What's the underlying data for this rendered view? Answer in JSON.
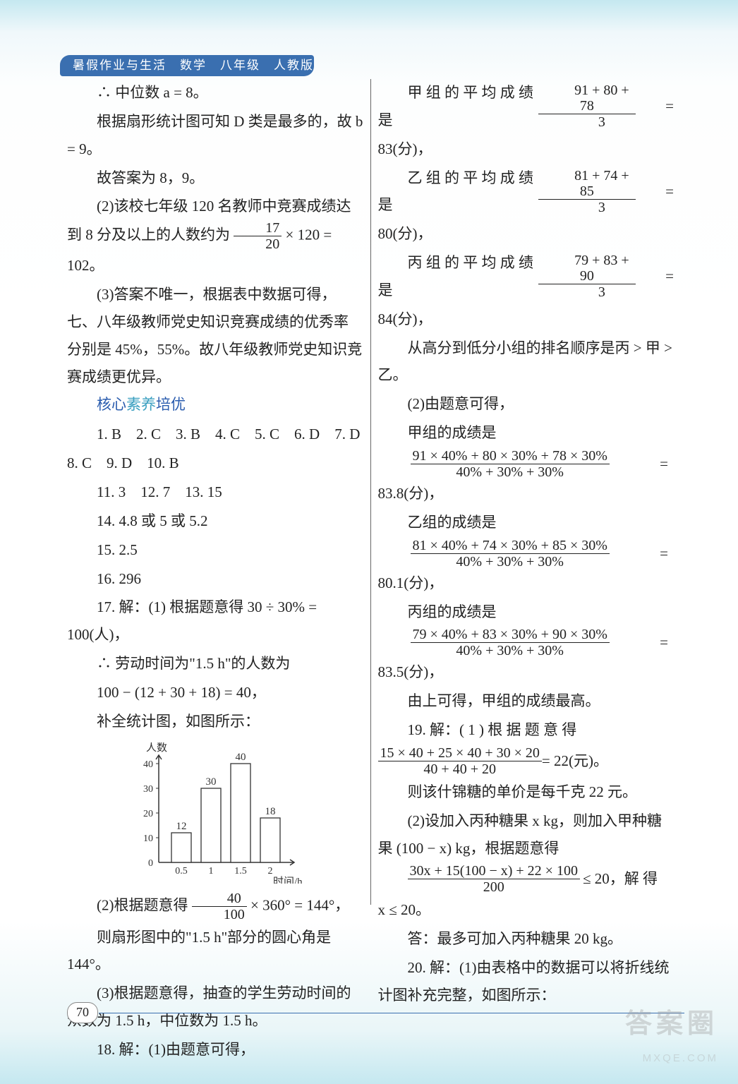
{
  "header": {
    "text": "暑假作业与生活　数学　八年级　人教版"
  },
  "left": {
    "l1": "∴ 中位数 a = 8。",
    "l2": "根据扇形统计图可知 D 类是最多的，故 b = 9。",
    "l3": "故答案为 8，9。",
    "l4": "(2)该校七年级 120 名教师中竞赛成绩达到 8 分及以上的人数约为",
    "frac1_num": "17",
    "frac1_den": "20",
    "l4b": " × 120 = 102。",
    "l5": "(3)答案不唯一，根据表中数据可得，七、八年级教师党史知识竞赛成绩的优秀率分别是 45%，55%。故八年级教师党史知识竞赛成绩更优异。",
    "section_title_a": "核心",
    "section_title_b": "素养",
    "section_title_c": "培优",
    "ans1": "1. B　2. C　3. B　4. C　5. C　6. D　7. D",
    "ans2": "8. C　9. D　10. B",
    "ans3": "11. 3　12. 7　13. 15",
    "ans4": "14. 4.8 或 5 或 5.2",
    "ans5": "15. 2.5",
    "ans6": "16. 296",
    "l6": "17. 解：(1) 根据题意得 30 ÷ 30% = 100(人)，",
    "l7": "∴ 劳动时间为\"1.5 h\"的人数为",
    "l8": "100 − (12 + 30 + 18) = 40，",
    "l9": "补全统计图，如图所示：",
    "l10a": "(2)根据题意得",
    "frac2_num": "40",
    "frac2_den": "100",
    "l10b": " × 360° = 144°，",
    "l11": "则扇形图中的\"1.5 h\"部分的圆心角是 144°。",
    "l12": "(3)根据题意得，抽查的学生劳动时间的众数为 1.5 h，中位数为 1.5 h。",
    "l13": "18. 解：(1)由题意可得，"
  },
  "chart": {
    "y_label": "人数",
    "x_label": "时间/h",
    "y_ticks": [
      "0",
      "10",
      "20",
      "30",
      "40"
    ],
    "x_ticks": [
      "0.5",
      "1",
      "1.5",
      "2"
    ],
    "bars": [
      {
        "label": "12",
        "value": 12
      },
      {
        "label": "30",
        "value": 30
      },
      {
        "label": "40",
        "value": 40
      },
      {
        "label": "18",
        "value": 18
      }
    ],
    "axis_color": "#333",
    "bar_fill": "#ffffff",
    "bar_stroke": "#333"
  },
  "right": {
    "r1a": "甲 组 的 平 均 成 绩 是 ",
    "frac_jia_num": "91 + 80 + 78",
    "frac_jia_den": "3",
    "r1b": " = ",
    "r1c": "83(分)，",
    "r2a": "乙 组 的 平 均 成 绩 是 ",
    "frac_yi_num": "81 + 74 + 85",
    "frac_yi_den": "3",
    "r2b": " = ",
    "r2c": "80(分)，",
    "r3a": "丙 组 的 平 均 成 绩 是 ",
    "frac_bing_num": "79 + 83 + 90",
    "frac_bing_den": "3",
    "r3b": " = ",
    "r3c": "84(分)，",
    "r4": "从高分到低分小组的排名顺序是丙 > 甲 > 乙。",
    "r5": "(2)由题意可得，",
    "r6": "甲组的成绩是",
    "eq1_num": "91 × 40% + 80 × 30% + 78 × 30%",
    "eq1_den": "40% + 30% + 30%",
    "r7": "83.8(分)，",
    "r8": "乙组的成绩是",
    "eq2_num": "81 × 40% + 74 × 30% + 85 × 30%",
    "eq2_den": "40% + 30% + 30%",
    "r9": "80.1(分)，",
    "r10": "丙组的成绩是",
    "eq3_num": "79 × 40% + 83 × 30% + 90 × 30%",
    "eq3_den": "40% + 30% + 30%",
    "r11": "83.5(分)，",
    "r12": "由上可得，甲组的成绩最高。",
    "r13a": "19. 解：( 1 ) 根 据 题 意 得",
    "frac19_num": "15 × 40 + 25 × 40 + 30 × 20",
    "frac19_den": "40 + 40 + 20",
    "r13b": " = 22(元)。",
    "r14": "则该什锦糖的单价是每千克 22 元。",
    "r15": "(2)设加入丙种糖果 x kg，则加入甲种糖果 (100 − x) kg，根据题意得",
    "eq4_num": "30x + 15(100 − x) + 22 × 100",
    "eq4_den": "200",
    "r15b": " ≤ 20，解 得",
    "r16": "x ≤ 20。",
    "r17": "答：最多可加入丙种糖果 20 kg。",
    "r18": "20. 解：(1)由表格中的数据可以将折线统计图补充完整，如图所示："
  },
  "page_number": "70",
  "watermark": {
    "main": "答案圈",
    "sub": "MXQE.COM"
  }
}
